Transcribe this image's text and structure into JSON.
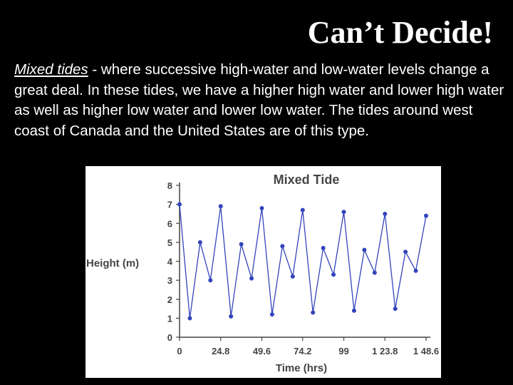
{
  "slide": {
    "title": "Can’t Decide!",
    "term": "Mixed tides",
    "description": " - where successive high-water and low-water levels change a great deal. In these tides, we have a higher high water and lower high water as well as higher low water and lower low water. The tides around west coast of Canada and the United States are of this type."
  },
  "colors": {
    "background": "#000000",
    "text": "#ffffff",
    "series": "#3344bb",
    "axis": "#444444"
  },
  "chart_data": {
    "type": "line",
    "title": "Mixed Tide",
    "xlabel": "Time (hrs)",
    "ylabel": "Height (m)",
    "xlim": [
      0,
      148.6
    ],
    "ylim": [
      0,
      8
    ],
    "x_ticks": [
      0,
      24.8,
      49.6,
      74.2,
      99,
      123.8,
      148.6
    ],
    "x_tick_labels": [
      "0",
      "24.8",
      "49.6",
      "74.2",
      "99",
      "1 23.8",
      "1 48.6"
    ],
    "y_ticks": [
      0,
      1,
      2,
      3,
      4,
      5,
      6,
      7,
      8
    ],
    "y_tick_labels": [
      "0",
      "1",
      "2",
      "3",
      "4",
      "5",
      "6",
      "7",
      "8"
    ],
    "grid": false,
    "series": [
      {
        "x": [
          0,
          6.2,
          12.4,
          18.6,
          24.8,
          31,
          37.2,
          43.4,
          49.6,
          55.8,
          62,
          68.2,
          74.2,
          80.4,
          86.6,
          92.8,
          99,
          105.2,
          111.4,
          117.6,
          123.8,
          130,
          136.2,
          142.4,
          148.6
        ],
        "y": [
          7.0,
          1.0,
          5.0,
          3.0,
          6.9,
          1.1,
          4.9,
          3.1,
          6.8,
          1.2,
          4.8,
          3.2,
          6.7,
          1.3,
          4.7,
          3.3,
          6.6,
          1.4,
          4.6,
          3.4,
          6.5,
          1.5,
          4.5,
          3.5,
          6.4
        ]
      }
    ]
  }
}
